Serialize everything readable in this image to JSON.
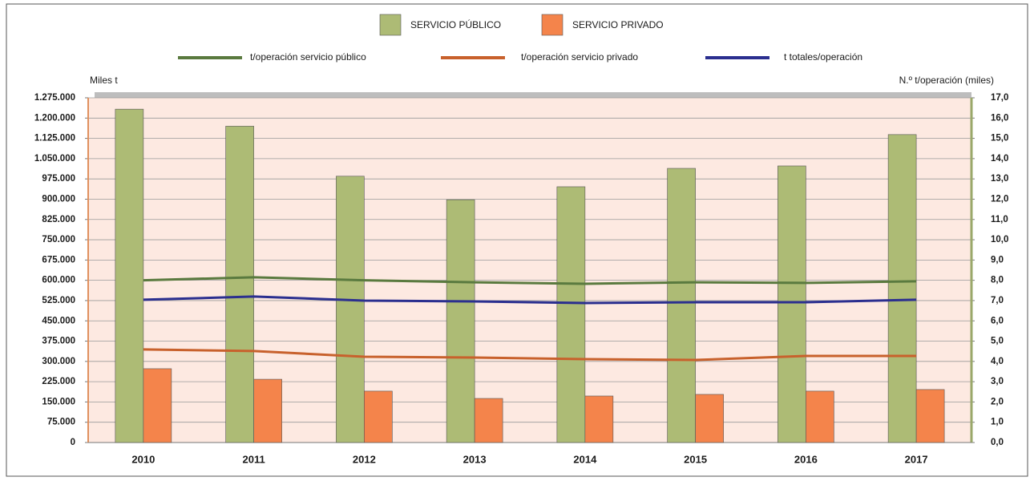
{
  "chart_data": {
    "type": "bar_line",
    "legend_top": [
      "SERVICIO PÚBLICO",
      "SERVICIO PRIVADO"
    ],
    "ylabel": "Miles t",
    "y2label": "N.º t/operación (miles)",
    "categories": [
      "2010",
      "2011",
      "2012",
      "2013",
      "2014",
      "2015",
      "2016",
      "2017"
    ],
    "series": [
      {
        "name": "SERVICIO PÚBLICO",
        "kind": "bar",
        "color": "#adbb75",
        "values": [
          1233000,
          1170000,
          985000,
          898000,
          946000,
          1014000,
          1023000,
          1139000
        ]
      },
      {
        "name": "SERVICIO PRIVADO",
        "kind": "bar",
        "color": "#f4844b",
        "values": [
          273000,
          234000,
          190000,
          163000,
          172000,
          178000,
          190000,
          196000
        ]
      },
      {
        "name": "t/operación servicio público",
        "kind": "line",
        "axis": "y2",
        "color": "#5a7a3f",
        "values": [
          8.0,
          8.15,
          8.0,
          7.9,
          7.83,
          7.9,
          7.87,
          7.95
        ]
      },
      {
        "name": "t/operación servicio privado",
        "kind": "line",
        "axis": "y2",
        "color": "#c8612c",
        "values": [
          4.59,
          4.51,
          4.23,
          4.19,
          4.11,
          4.07,
          4.27,
          4.27
        ]
      },
      {
        "name": "t totales/operación",
        "kind": "line",
        "axis": "y2",
        "color": "#2b2f8f",
        "values": [
          7.04,
          7.2,
          7.0,
          6.96,
          6.88,
          6.92,
          6.92,
          7.04
        ]
      }
    ],
    "ylim": [
      0,
      1275000
    ],
    "yticks": [
      0,
      {
        "value": 75000,
        "label": "75.000"
      },
      {
        "value": 150000,
        "label": "150.000"
      },
      {
        "value": 225000,
        "label": "225.000"
      },
      {
        "value": 300000,
        "label": "300.000"
      },
      {
        "value": 375000,
        "label": "375.000"
      },
      {
        "value": 450000,
        "label": "450.000"
      },
      {
        "value": 525000,
        "label": "525.000"
      },
      {
        "value": 600000,
        "label": "600.000"
      },
      {
        "value": 675000,
        "label": "675.000"
      },
      {
        "value": 750000,
        "label": "750.000"
      },
      {
        "value": 825000,
        "label": "825.000"
      },
      {
        "value": 900000,
        "label": "900.000"
      },
      {
        "value": 975000,
        "label": "975.000"
      },
      {
        "value": 1050000,
        "label": "1.050.000"
      },
      {
        "value": 1125000,
        "label": "1.125.000"
      },
      {
        "value": 1200000,
        "label": "1.200.000"
      },
      {
        "value": 1275000,
        "label": "1.275.000"
      }
    ],
    "y2lim": [
      0,
      17
    ],
    "y2ticks": [
      {
        "value": 0,
        "label": "0,0"
      },
      {
        "value": 1,
        "label": "1,0"
      },
      {
        "value": 2,
        "label": "2,0"
      },
      {
        "value": 3,
        "label": "3,0"
      },
      {
        "value": 4,
        "label": "4,0"
      },
      {
        "value": 5,
        "label": "5,0"
      },
      {
        "value": 6,
        "label": "6,0"
      },
      {
        "value": 7,
        "label": "7,0"
      },
      {
        "value": 8,
        "label": "8,0"
      },
      {
        "value": 9,
        "label": "9,0"
      },
      {
        "value": 10,
        "label": "10,0"
      },
      {
        "value": 11,
        "label": "11,0"
      },
      {
        "value": 12,
        "label": "12,0"
      },
      {
        "value": 13,
        "label": "13,0"
      },
      {
        "value": 14,
        "label": "14,0"
      },
      {
        "value": 15,
        "label": "15,0"
      },
      {
        "value": 16,
        "label": "16,0"
      },
      {
        "value": 17,
        "label": "17,0"
      }
    ],
    "grid": true
  }
}
